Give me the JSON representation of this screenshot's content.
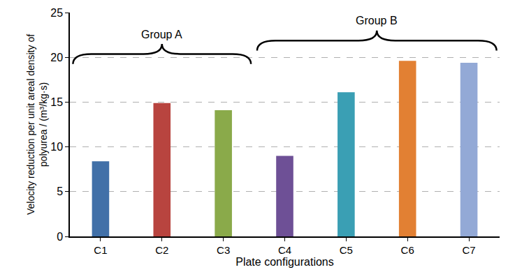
{
  "chart_data": {
    "type": "bar",
    "categories": [
      "C1",
      "C2",
      "C3",
      "C4",
      "C5",
      "C6",
      "C7"
    ],
    "values": [
      8.4,
      14.9,
      14.1,
      9.0,
      16.1,
      19.6,
      19.4
    ],
    "colors": [
      "#4170a8",
      "#b8443f",
      "#8aaa4a",
      "#6e5096",
      "#3a9fb4",
      "#e28033",
      "#93a9d6"
    ],
    "xlabel": "Plate configurations",
    "ylabel": "Velocity reduction per unit areal density of\npolyurea / (m³/kg·s)",
    "ylim": [
      0,
      25
    ],
    "yticks": [
      0,
      5,
      10,
      15,
      20,
      25
    ],
    "grid": true,
    "annotations": [
      {
        "text": "Group A",
        "categories": [
          "C1",
          "C2",
          "C3"
        ]
      },
      {
        "text": "Group B",
        "categories": [
          "C4",
          "C5",
          "C6",
          "C7"
        ]
      }
    ]
  }
}
